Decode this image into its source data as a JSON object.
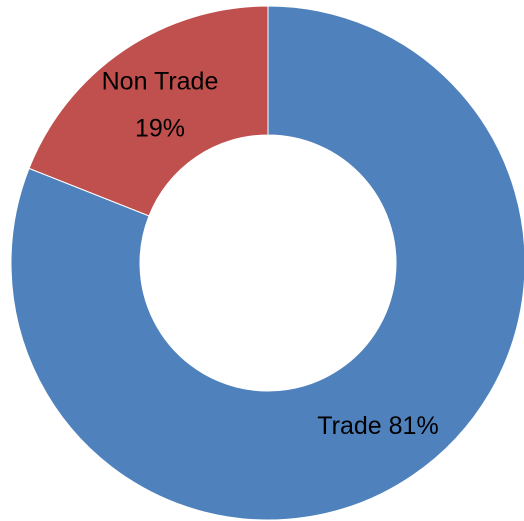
{
  "chart_data": {
    "type": "donut",
    "categories": [
      "Trade",
      "Non Trade"
    ],
    "values": [
      81,
      19
    ],
    "value_labels": [
      "81%",
      "19%"
    ],
    "colors": [
      "#4f81bd",
      "#c0504d"
    ]
  }
}
